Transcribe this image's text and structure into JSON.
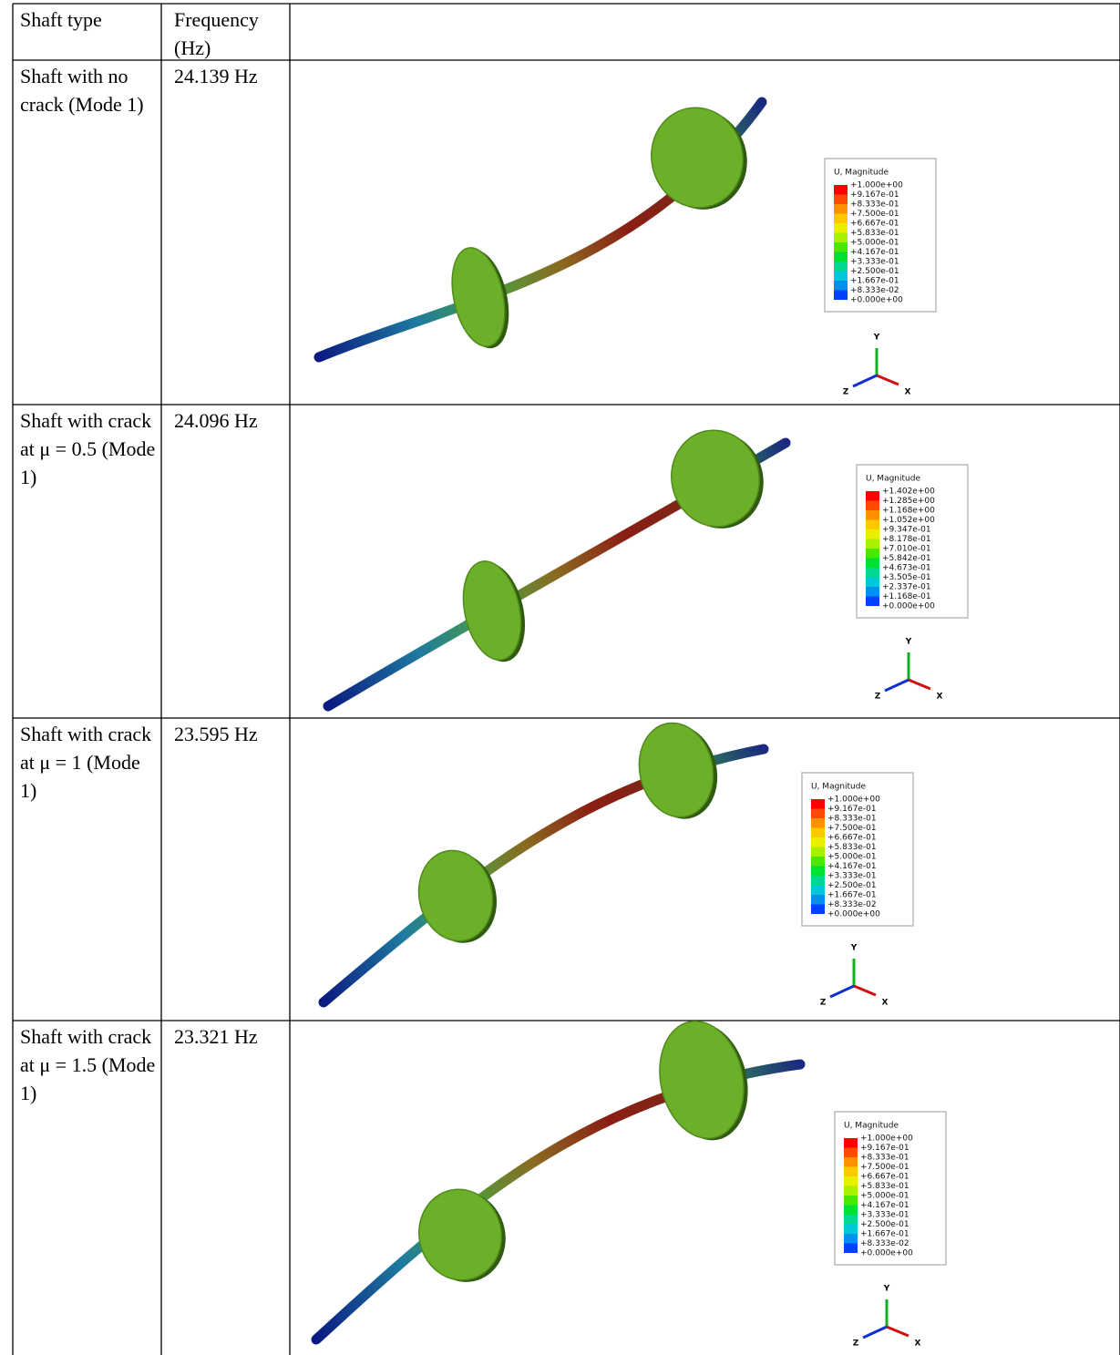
{
  "table": {
    "header": [
      "Shaft type",
      "Frequency (Hz)"
    ],
    "rows": [
      {
        "cells": [
          "Shaft with no crack (Mode 1)",
          "24.139 Hz"
        ],
        "figure": {
          "legend_title": "U, Magnitude",
          "legend_values": [
            "+1.000e+00",
            "+9.167e-01",
            "+8.333e-01",
            "+7.500e-01",
            "+6.667e-01",
            "+5.833e-01",
            "+5.000e-01",
            "+4.167e-01",
            "+3.333e-01",
            "+2.500e-01",
            "+1.667e-01",
            "+8.333e-02",
            "+0.000e+00"
          ],
          "axes": [
            "Y",
            "Z",
            "X"
          ]
        }
      },
      {
        "cells": [
          "Shaft with crack at μ = 0.5 (Mode 1)",
          "24.096 Hz"
        ],
        "figure": {
          "legend_title": "U, Magnitude",
          "legend_values": [
            "+1.402e+00",
            "+1.285e+00",
            "+1.168e+00",
            "+1.052e+00",
            "+9.347e-01",
            "+8.178e-01",
            "+7.010e-01",
            "+5.842e-01",
            "+4.673e-01",
            "+3.505e-01",
            "+2.337e-01",
            "+1.168e-01",
            "+0.000e+00"
          ],
          "axes": [
            "Y",
            "Z",
            "X"
          ]
        }
      },
      {
        "cells": [
          "Shaft with crack at μ = 1 (Mode 1)",
          "23.595 Hz"
        ],
        "figure": {
          "legend_title": "U, Magnitude",
          "legend_values": [
            "+1.000e+00",
            "+9.167e-01",
            "+8.333e-01",
            "+7.500e-01",
            "+6.667e-01",
            "+5.833e-01",
            "+5.000e-01",
            "+4.167e-01",
            "+3.333e-01",
            "+2.500e-01",
            "+1.667e-01",
            "+8.333e-02",
            "+0.000e+00"
          ],
          "axes": [
            "Y",
            "Z",
            "X"
          ]
        }
      },
      {
        "cells": [
          "Shaft with crack at μ = 1.5 (Mode 1)",
          "23.321 Hz"
        ],
        "figure": {
          "legend_title": "U, Magnitude",
          "legend_values": [
            "+1.000e+00",
            "+9.167e-01",
            "+8.333e-01",
            "+7.500e-01",
            "+6.667e-01",
            "+5.833e-01",
            "+5.000e-01",
            "+4.167e-01",
            "+3.333e-01",
            "+2.500e-01",
            "+1.667e-01",
            "+8.333e-02",
            "+0.000e+00"
          ],
          "axes": [
            "Y",
            "Z",
            "X"
          ]
        }
      }
    ]
  }
}
